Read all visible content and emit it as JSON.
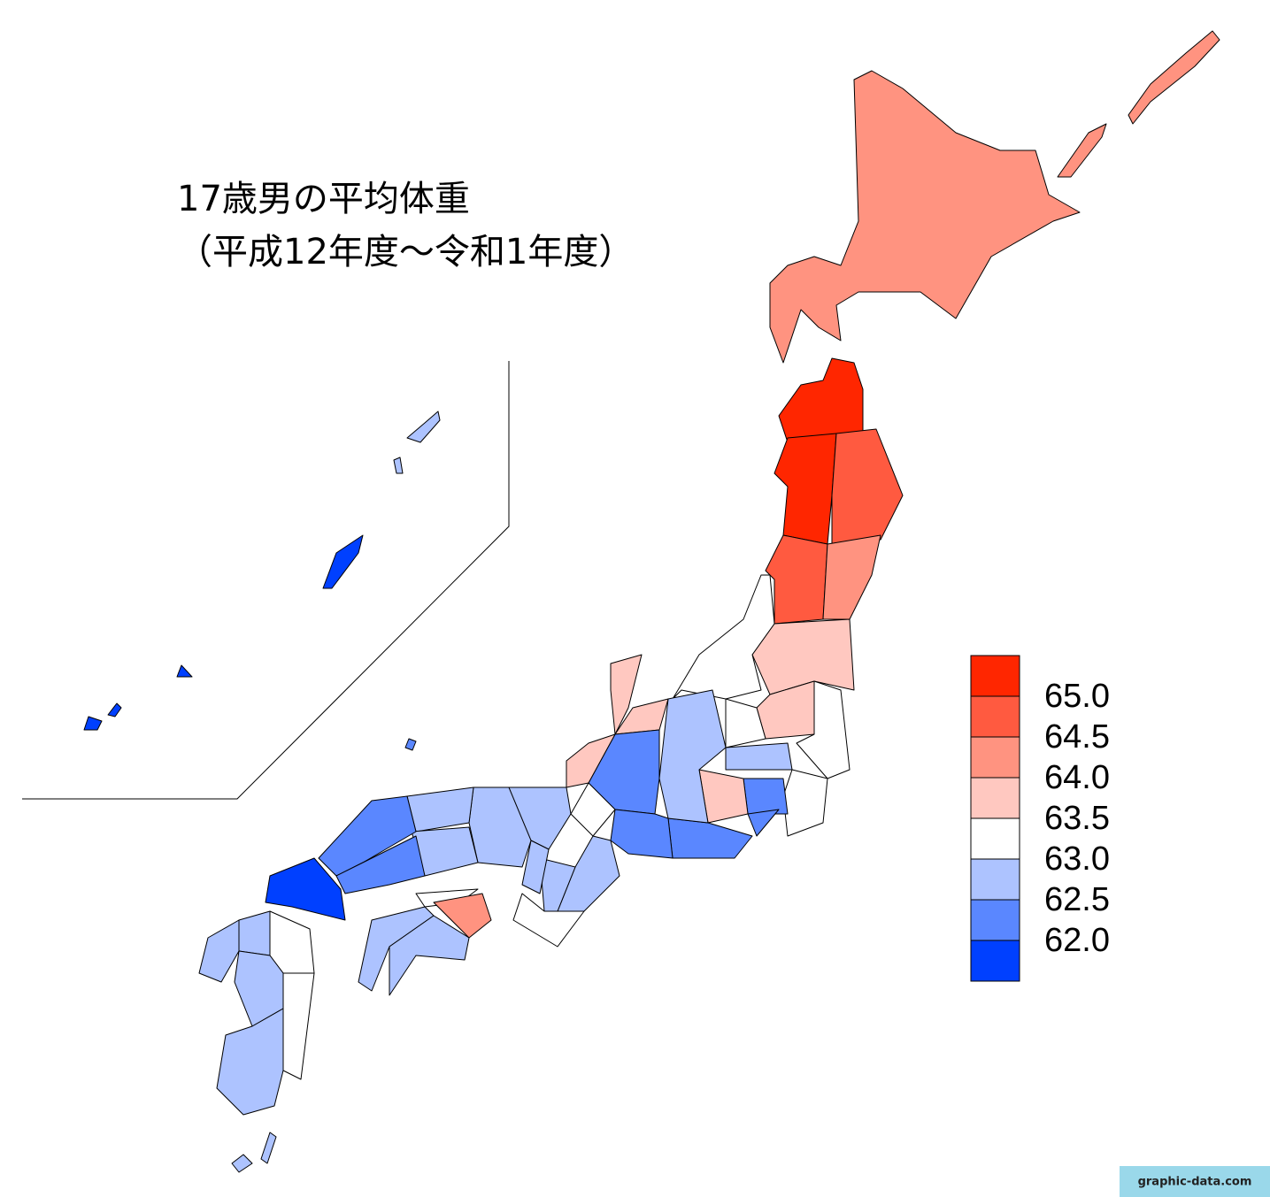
{
  "title": [
    "17歳男の平均体重",
    "（平成12年度～令和1年度）"
  ],
  "legend": {
    "items": [
      {
        "value": 65,
        "label": "65.0",
        "color": "#ff2600"
      },
      {
        "value": 64.5,
        "label": "64.5",
        "color": "#ff5a40"
      },
      {
        "value": 64,
        "label": "64.0",
        "color": "#ff9380"
      },
      {
        "value": 63.5,
        "label": "63.5",
        "color": "#ffc8c0"
      },
      {
        "value": 63,
        "label": "63.0",
        "color": "#ffffff"
      },
      {
        "value": 62.5,
        "label": "62.5",
        "color": "#adc3ff"
      },
      {
        "value": 62,
        "label": "62.0",
        "color": "#5a87ff"
      }
    ],
    "bottom_color": "#0040ff"
  },
  "footer": "graphic-data.com"
}
